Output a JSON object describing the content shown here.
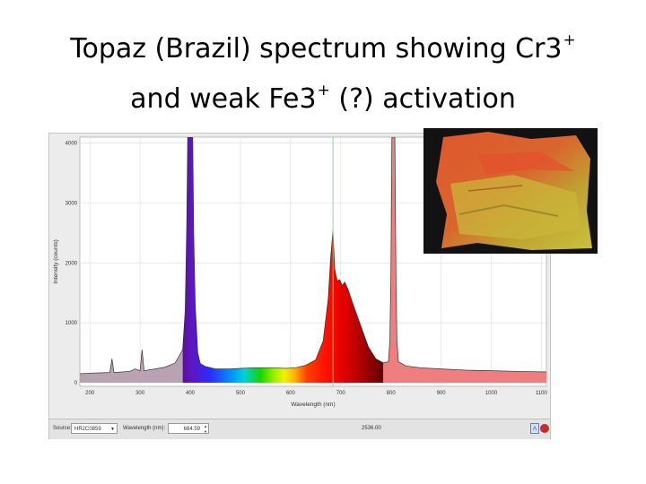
{
  "slide": {
    "title_line1_text": "Topaz (Brazil) spectrum showing Cr3",
    "title_line1_sup": "+",
    "title_line2_text": "and weak Fe3",
    "title_line2_sup": "+",
    "title_line2_rest": " (?) activation"
  },
  "chart_data": {
    "type": "line",
    "title": "",
    "xlabel": "Wavelength (nm)",
    "ylabel": "Intensity (counts)",
    "xlim": [
      180,
      1110
    ],
    "ylim": [
      -60,
      4100
    ],
    "x_ticks": [
      200,
      300,
      400,
      500,
      600,
      700,
      800,
      900,
      1000,
      1100
    ],
    "y_ticks": [
      0,
      1000,
      2000,
      3000,
      4000
    ],
    "grid": true,
    "marker_wavelength": 684.59,
    "series": [
      {
        "points": [
          [
            180,
            150
          ],
          [
            200,
            160
          ],
          [
            240,
            170
          ],
          [
            244,
            400
          ],
          [
            248,
            170
          ],
          [
            280,
            190
          ],
          [
            290,
            230
          ],
          [
            300,
            200
          ],
          [
            304,
            550
          ],
          [
            308,
            200
          ],
          [
            330,
            230
          ],
          [
            350,
            260
          ],
          [
            370,
            330
          ],
          [
            385,
            550
          ],
          [
            390,
            1200
          ],
          [
            393,
            2600
          ],
          [
            395,
            4100
          ],
          [
            405,
            4100
          ],
          [
            407,
            2500
          ],
          [
            410,
            1300
          ],
          [
            415,
            500
          ],
          [
            420,
            320
          ],
          [
            430,
            270
          ],
          [
            450,
            230
          ],
          [
            480,
            230
          ],
          [
            500,
            240
          ],
          [
            530,
            250
          ],
          [
            560,
            250
          ],
          [
            590,
            240
          ],
          [
            610,
            250
          ],
          [
            630,
            290
          ],
          [
            650,
            380
          ],
          [
            665,
            700
          ],
          [
            675,
            1400
          ],
          [
            680,
            2100
          ],
          [
            684.6,
            2550
          ],
          [
            688,
            1900
          ],
          [
            693,
            1700
          ],
          [
            698,
            1720
          ],
          [
            703,
            1620
          ],
          [
            708,
            1680
          ],
          [
            715,
            1550
          ],
          [
            725,
            1300
          ],
          [
            740,
            950
          ],
          [
            755,
            600
          ],
          [
            770,
            400
          ],
          [
            785,
            330
          ],
          [
            795,
            350
          ],
          [
            798,
            700
          ],
          [
            800,
            1800
          ],
          [
            802,
            4100
          ],
          [
            808,
            4100
          ],
          [
            810,
            1800
          ],
          [
            812,
            700
          ],
          [
            815,
            350
          ],
          [
            830,
            280
          ],
          [
            860,
            250
          ],
          [
            900,
            230
          ],
          [
            950,
            210
          ],
          [
            1000,
            200
          ],
          [
            1050,
            190
          ],
          [
            1110,
            180
          ]
        ]
      }
    ],
    "toolbar": {
      "source_label": "Source:",
      "source_value": "HR2C0859",
      "wavelength_label": "Wavelength (nm):",
      "wavelength_value": "684.59",
      "intensity_value": "2536.00"
    },
    "colors": {
      "fill_uv": "#b9a3b3",
      "fill_ir": "#ef7e7e",
      "line": "#333333"
    }
  }
}
